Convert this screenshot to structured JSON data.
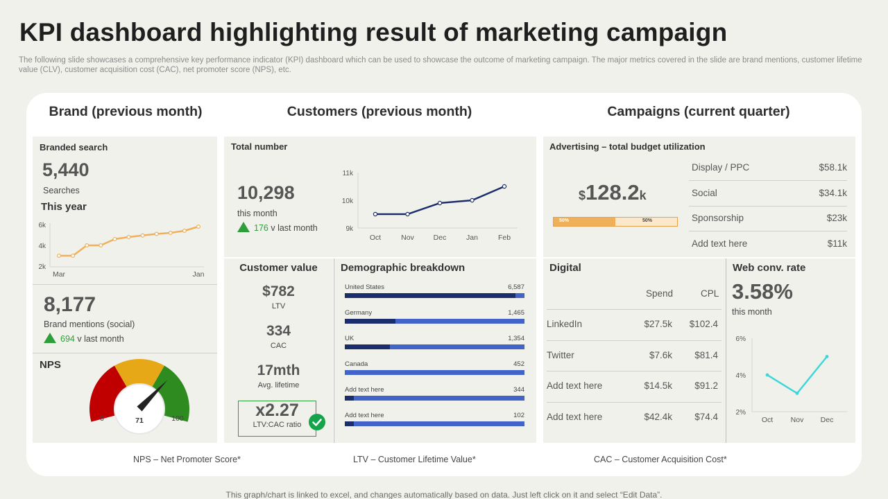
{
  "header": {
    "title": "KPI dashboard highlighting result of marketing campaign",
    "subtitle": "The following slide showcases a comprehensive key performance indicator (KPI) dashboard which can be used to showcase the outcome of marketing campaign. The major metrics covered in the slide are brand mentions, customer lifetime value (CLV),  customer acquisition cost (CAC), net promoter score (NPS), etc."
  },
  "sections": {
    "brand": "Brand (previous month)",
    "customers": "Customers (previous month)",
    "campaigns": "Campaigns (current quarter)"
  },
  "brand": {
    "branded_search_label": "Branded search",
    "searches_value": "5,440",
    "searches_label": "Searches",
    "this_year_label": "This year",
    "mentions_value": "8,177",
    "mentions_label": "Brand mentions (social)",
    "mentions_delta": "694",
    "mentions_delta_suffix": "v last month",
    "nps_label": "NPS",
    "nps_value": "71",
    "nps_min": "0",
    "nps_max": "100",
    "gauge_colors": [
      "#c00000",
      "#e6a817",
      "#2e8b1f"
    ]
  },
  "customers": {
    "total_label": "Total number",
    "total_value": "10,298",
    "total_sub": "this month",
    "total_delta": "176",
    "total_delta_suffix": "v last month",
    "value_label": "Customer value",
    "ltv_value": "$782",
    "ltv_label": "LTV",
    "cac_value": "334",
    "cac_label": "CAC",
    "lifetime_value": "17mth",
    "lifetime_label": "Avg. lifetime",
    "ratio_value": "x2.27",
    "ratio_label": "LTV:CAC ratio",
    "demo_label": "Demographic breakdown",
    "demographics": [
      {
        "name": "United States",
        "value": "6,587",
        "share": 0.95
      },
      {
        "name": "Germany",
        "value": "1,465",
        "share": 0.28
      },
      {
        "name": "UK",
        "value": "1,354",
        "share": 0.25
      },
      {
        "name": "Canada",
        "value": "452",
        "share": 0.0
      },
      {
        "name": "Add text here",
        "value": "344",
        "share": 0.05
      },
      {
        "name": "Add text here",
        "value": "102",
        "share": 0.05
      }
    ]
  },
  "campaigns": {
    "advertising_label": "Advertising – total budget utilization",
    "budget_prefix": "$",
    "budget_value": "128.2",
    "budget_suffix": "k",
    "budget_bar_left": "50%",
    "budget_bar_right": "50%",
    "budget_fraction": 0.5,
    "budget_items": [
      {
        "name": "Display / PPC",
        "amount": "$58.1k"
      },
      {
        "name": "Social",
        "amount": "$34.1k"
      },
      {
        "name": "Sponsorship",
        "amount": "$23k"
      },
      {
        "name": "Add text here",
        "amount": "$11k"
      }
    ],
    "digital_label": "Digital",
    "digital_headers": {
      "spend": "Spend",
      "cpl": "CPL"
    },
    "digital_rows": [
      {
        "channel": "LinkedIn",
        "spend": "$27.5k",
        "cpl": "$102.4"
      },
      {
        "channel": "Twitter",
        "spend": "$7.6k",
        "cpl": "$81.4"
      },
      {
        "channel": "Add text here",
        "spend": "$14.5k",
        "cpl": "$91.2"
      },
      {
        "channel": "Add text here",
        "spend": "$42.4k",
        "cpl": "$74.4"
      }
    ],
    "web_label": "Web conv. rate",
    "web_value": "3.58%",
    "web_sub": "this month"
  },
  "footnotes": {
    "nps": "NPS – Net Promoter Score*",
    "ltv": "LTV – Customer Lifetime Value*",
    "cac": "CAC – Customer Acquisition Cost*"
  },
  "bottom_note": "This graph/chart is linked to excel,  and changes automatically based on data. Just left click on it and select “Edit Data”.",
  "colors": {
    "accent_orange": "#f0b05a",
    "navy": "#1c2d6b",
    "blue": "#4263c8",
    "green": "#2e9e3a",
    "teal": "#3fd6d8"
  },
  "chart_data": [
    {
      "id": "brand_searches",
      "type": "line",
      "title": "This year",
      "x": [
        "Mar",
        "",
        "",
        "",
        "",
        "",
        "",
        "",
        "",
        "",
        "Jan"
      ],
      "xtick_labels": [
        "Mar",
        "Jan"
      ],
      "values": [
        3000,
        3000,
        4000,
        4000,
        4600,
        4800,
        4950,
        5100,
        5200,
        5400,
        5800
      ],
      "yticks": [
        "2k",
        "4k",
        "6k"
      ],
      "ylim": [
        2000,
        6000
      ]
    },
    {
      "id": "customers_total",
      "type": "line",
      "title": "Total number",
      "x": [
        "Oct",
        "Nov",
        "Dec",
        "Jan",
        "Feb"
      ],
      "values": [
        9500,
        9500,
        9900,
        10000,
        10500
      ],
      "yticks": [
        "9k",
        "10k",
        "11k"
      ],
      "ylim": [
        9000,
        11000
      ]
    },
    {
      "id": "web_conversion",
      "type": "line",
      "title": "Web conv. rate",
      "x": [
        "Oct",
        "Nov",
        "Dec"
      ],
      "values": [
        4.0,
        3.0,
        5.0
      ],
      "yticks": [
        "2%",
        "4%",
        "6%"
      ],
      "ylim": [
        2,
        6
      ]
    }
  ]
}
